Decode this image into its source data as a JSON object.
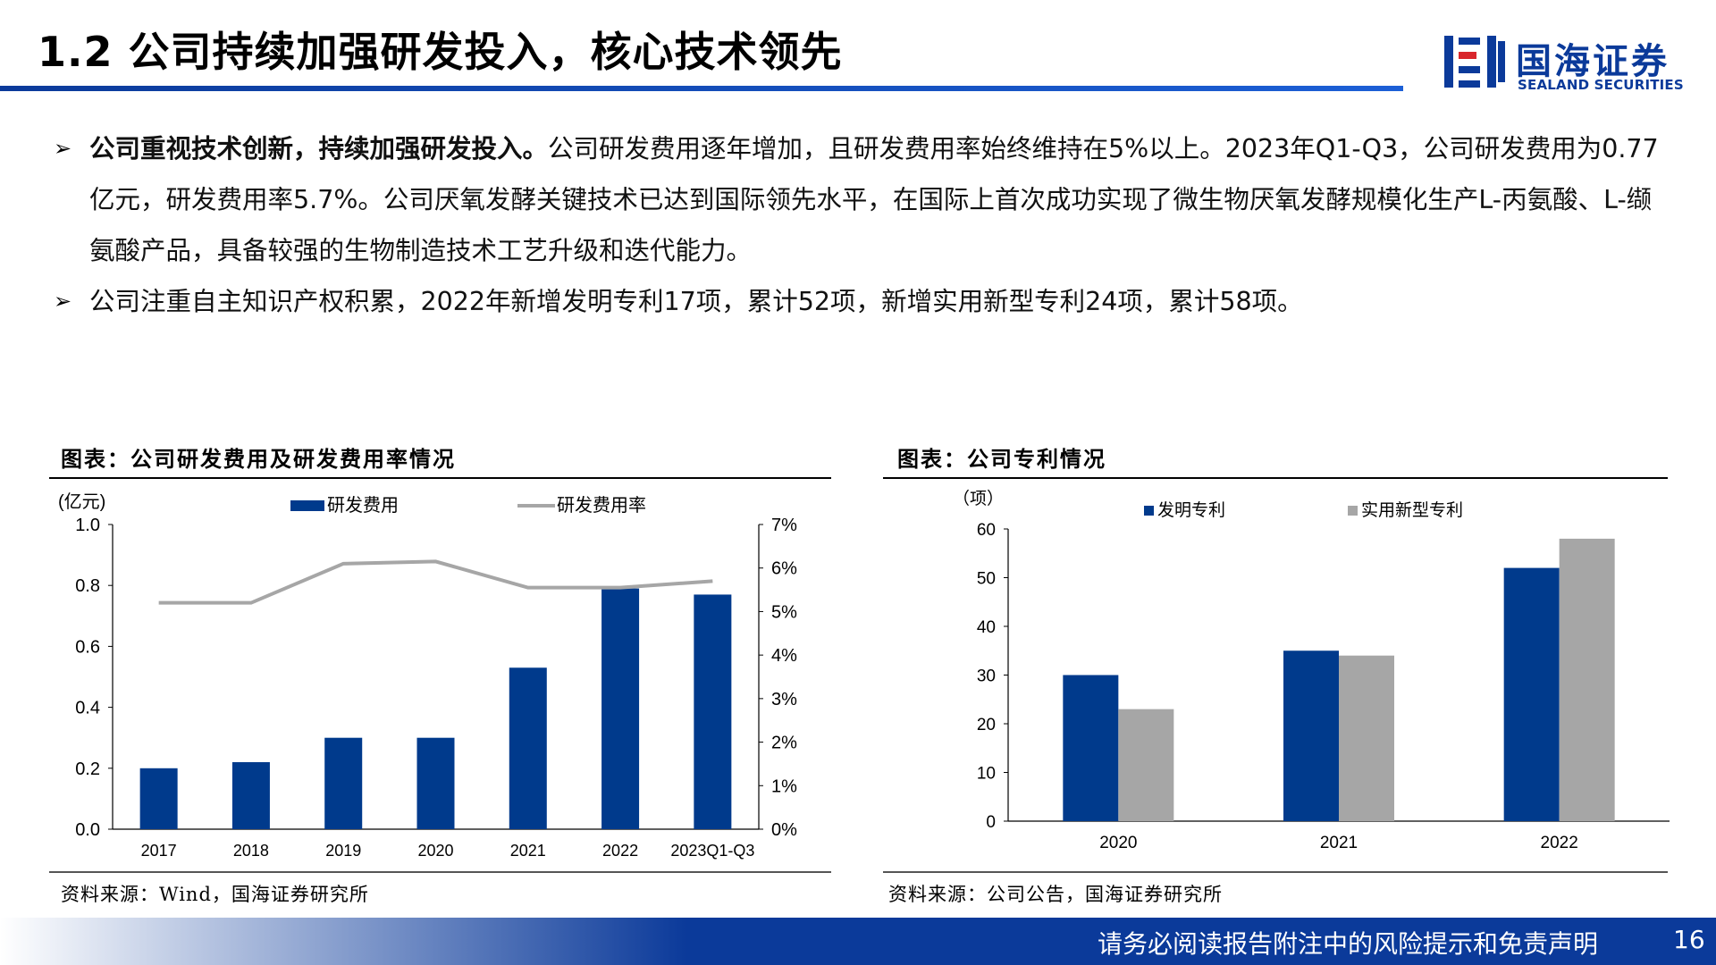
{
  "header": {
    "title": "1.2 公司持续加强研发投入，核心技术领先",
    "logo_cn": "国海证券",
    "logo_en": "SEALAND SECURITIES",
    "accent_color": "#0b3a9a"
  },
  "bullets": [
    {
      "bold": "公司重视技术创新，持续加强研发投入。",
      "text": "公司研发费用逐年增加，且研发费用率始终维持在5%以上。2023年Q1-Q3，公司研发费用为0.77亿元，研发费用率5.7%。公司厌氧发酵关键技术已达到国际领先水平，在国际上首次成功实现了微生物厌氧发酵规模化生产L-丙氨酸、L-缬氨酸产品，具备较强的生物制造技术工艺升级和迭代能力。"
    },
    {
      "bold": "",
      "text": "公司注重自主知识产权积累，2022年新增发明专利17项，累计52项，新增实用新型专利24项，累计58项。"
    }
  ],
  "left_panel": {
    "title": "图表：公司研发费用及研发费用率情况",
    "source": "资料来源：Wind，国海证券研究所"
  },
  "right_panel": {
    "title": "图表：公司专利情况",
    "source": "资料来源：公司公告，国海证券研究所"
  },
  "chart_data": [
    {
      "type": "bar",
      "categories": [
        "2017",
        "2018",
        "2019",
        "2020",
        "2021",
        "2022",
        "2023Q1-Q3"
      ],
      "series": [
        {
          "name": "研发费用",
          "type": "bar",
          "axis": "left",
          "color": "#003a8c",
          "values": [
            0.2,
            0.22,
            0.3,
            0.3,
            0.53,
            0.79,
            0.77
          ]
        },
        {
          "name": "研发费用率",
          "type": "line",
          "axis": "right",
          "color": "#a6a6a6",
          "values": [
            5.2,
            5.2,
            6.1,
            6.15,
            5.55,
            5.55,
            5.7
          ]
        }
      ],
      "ylabel": "(亿元)",
      "ylim": [
        0,
        1.0
      ],
      "yticks": [
        "0.0",
        "0.2",
        "0.4",
        "0.6",
        "0.8",
        "1.0"
      ],
      "y2lim": [
        0,
        7
      ],
      "y2ticks": [
        "0%",
        "1%",
        "2%",
        "3%",
        "4%",
        "5%",
        "6%",
        "7%"
      ],
      "legend": "top",
      "grid": false
    },
    {
      "type": "bar",
      "categories": [
        "2020",
        "2021",
        "2022"
      ],
      "series": [
        {
          "name": "发明专利",
          "color": "#003a8c",
          "values": [
            30,
            35,
            52
          ]
        },
        {
          "name": "实用新型专利",
          "color": "#a6a6a6",
          "values": [
            23,
            34,
            58
          ]
        }
      ],
      "ylabel": "（项）",
      "ylim": [
        0,
        60
      ],
      "yticks": [
        "0",
        "10",
        "20",
        "30",
        "40",
        "50",
        "60"
      ],
      "legend": "top",
      "grid": false
    }
  ],
  "footer": {
    "disclaimer": "请务必阅读报告附注中的风险提示和免责声明",
    "page_number": "16"
  }
}
